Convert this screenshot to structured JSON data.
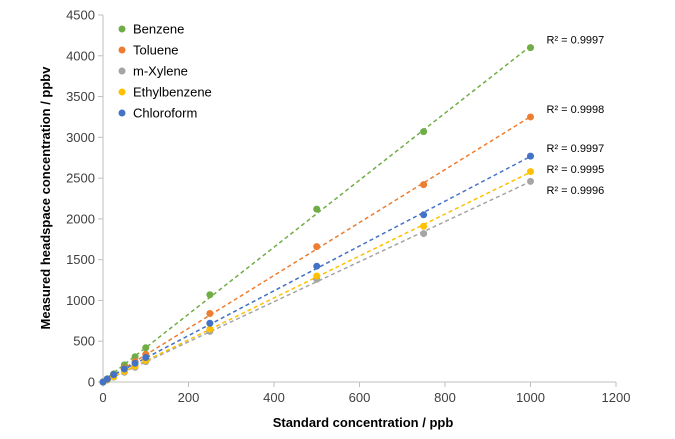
{
  "chart_data": {
    "type": "scatter",
    "title": "",
    "xlabel": "Standard concentration / ppb",
    "ylabel": "Measured headspace concentration / ppbv",
    "xlim": [
      0,
      1200
    ],
    "ylim": [
      0,
      4500
    ],
    "xticks": [
      "0",
      "200",
      "400",
      "600",
      "800",
      "1000",
      "1200"
    ],
    "yticks": [
      "0",
      "500",
      "1000",
      "1500",
      "2000",
      "2500",
      "3000",
      "3500",
      "4000",
      "4500"
    ],
    "grid": false,
    "legend_position": "top-left",
    "trendline": "linear (dashed)",
    "series": [
      {
        "name": "Benzene",
        "color": "#70AD47",
        "r2_label": "R² = 0.9997",
        "x": [
          0,
          10,
          25,
          50,
          75,
          100,
          250,
          500,
          750,
          1000
        ],
        "y": [
          0,
          40,
          100,
          210,
          310,
          420,
          1070,
          2120,
          3070,
          4100
        ]
      },
      {
        "name": "Toluene",
        "color": "#ED7D31",
        "r2_label": "R² = 0.9998",
        "x": [
          0,
          10,
          25,
          50,
          75,
          100,
          250,
          500,
          750,
          1000
        ],
        "y": [
          0,
          30,
          80,
          170,
          250,
          340,
          840,
          1660,
          2420,
          3250
        ]
      },
      {
        "name": "m-Xylene",
        "color": "#A5A5A5",
        "r2_label": "R² = 0.9996",
        "x": [
          0,
          10,
          25,
          50,
          75,
          100,
          250,
          500,
          750,
          1000
        ],
        "y": [
          0,
          25,
          60,
          120,
          180,
          250,
          620,
          1260,
          1820,
          2460
        ]
      },
      {
        "name": "Ethylbenzene",
        "color": "#FFC000",
        "r2_label": "R² = 0.9995",
        "x": [
          0,
          10,
          25,
          50,
          75,
          100,
          250,
          500,
          750,
          1000
        ],
        "y": [
          0,
          25,
          65,
          130,
          195,
          265,
          650,
          1300,
          1910,
          2580
        ]
      },
      {
        "name": "Chloroform",
        "color": "#4472C4",
        "r2_label": "R² = 0.9997",
        "x": [
          0,
          10,
          25,
          50,
          75,
          100,
          250,
          500,
          750,
          1000
        ],
        "y": [
          0,
          35,
          90,
          160,
          230,
          300,
          720,
          1420,
          2050,
          2770
        ]
      }
    ]
  }
}
